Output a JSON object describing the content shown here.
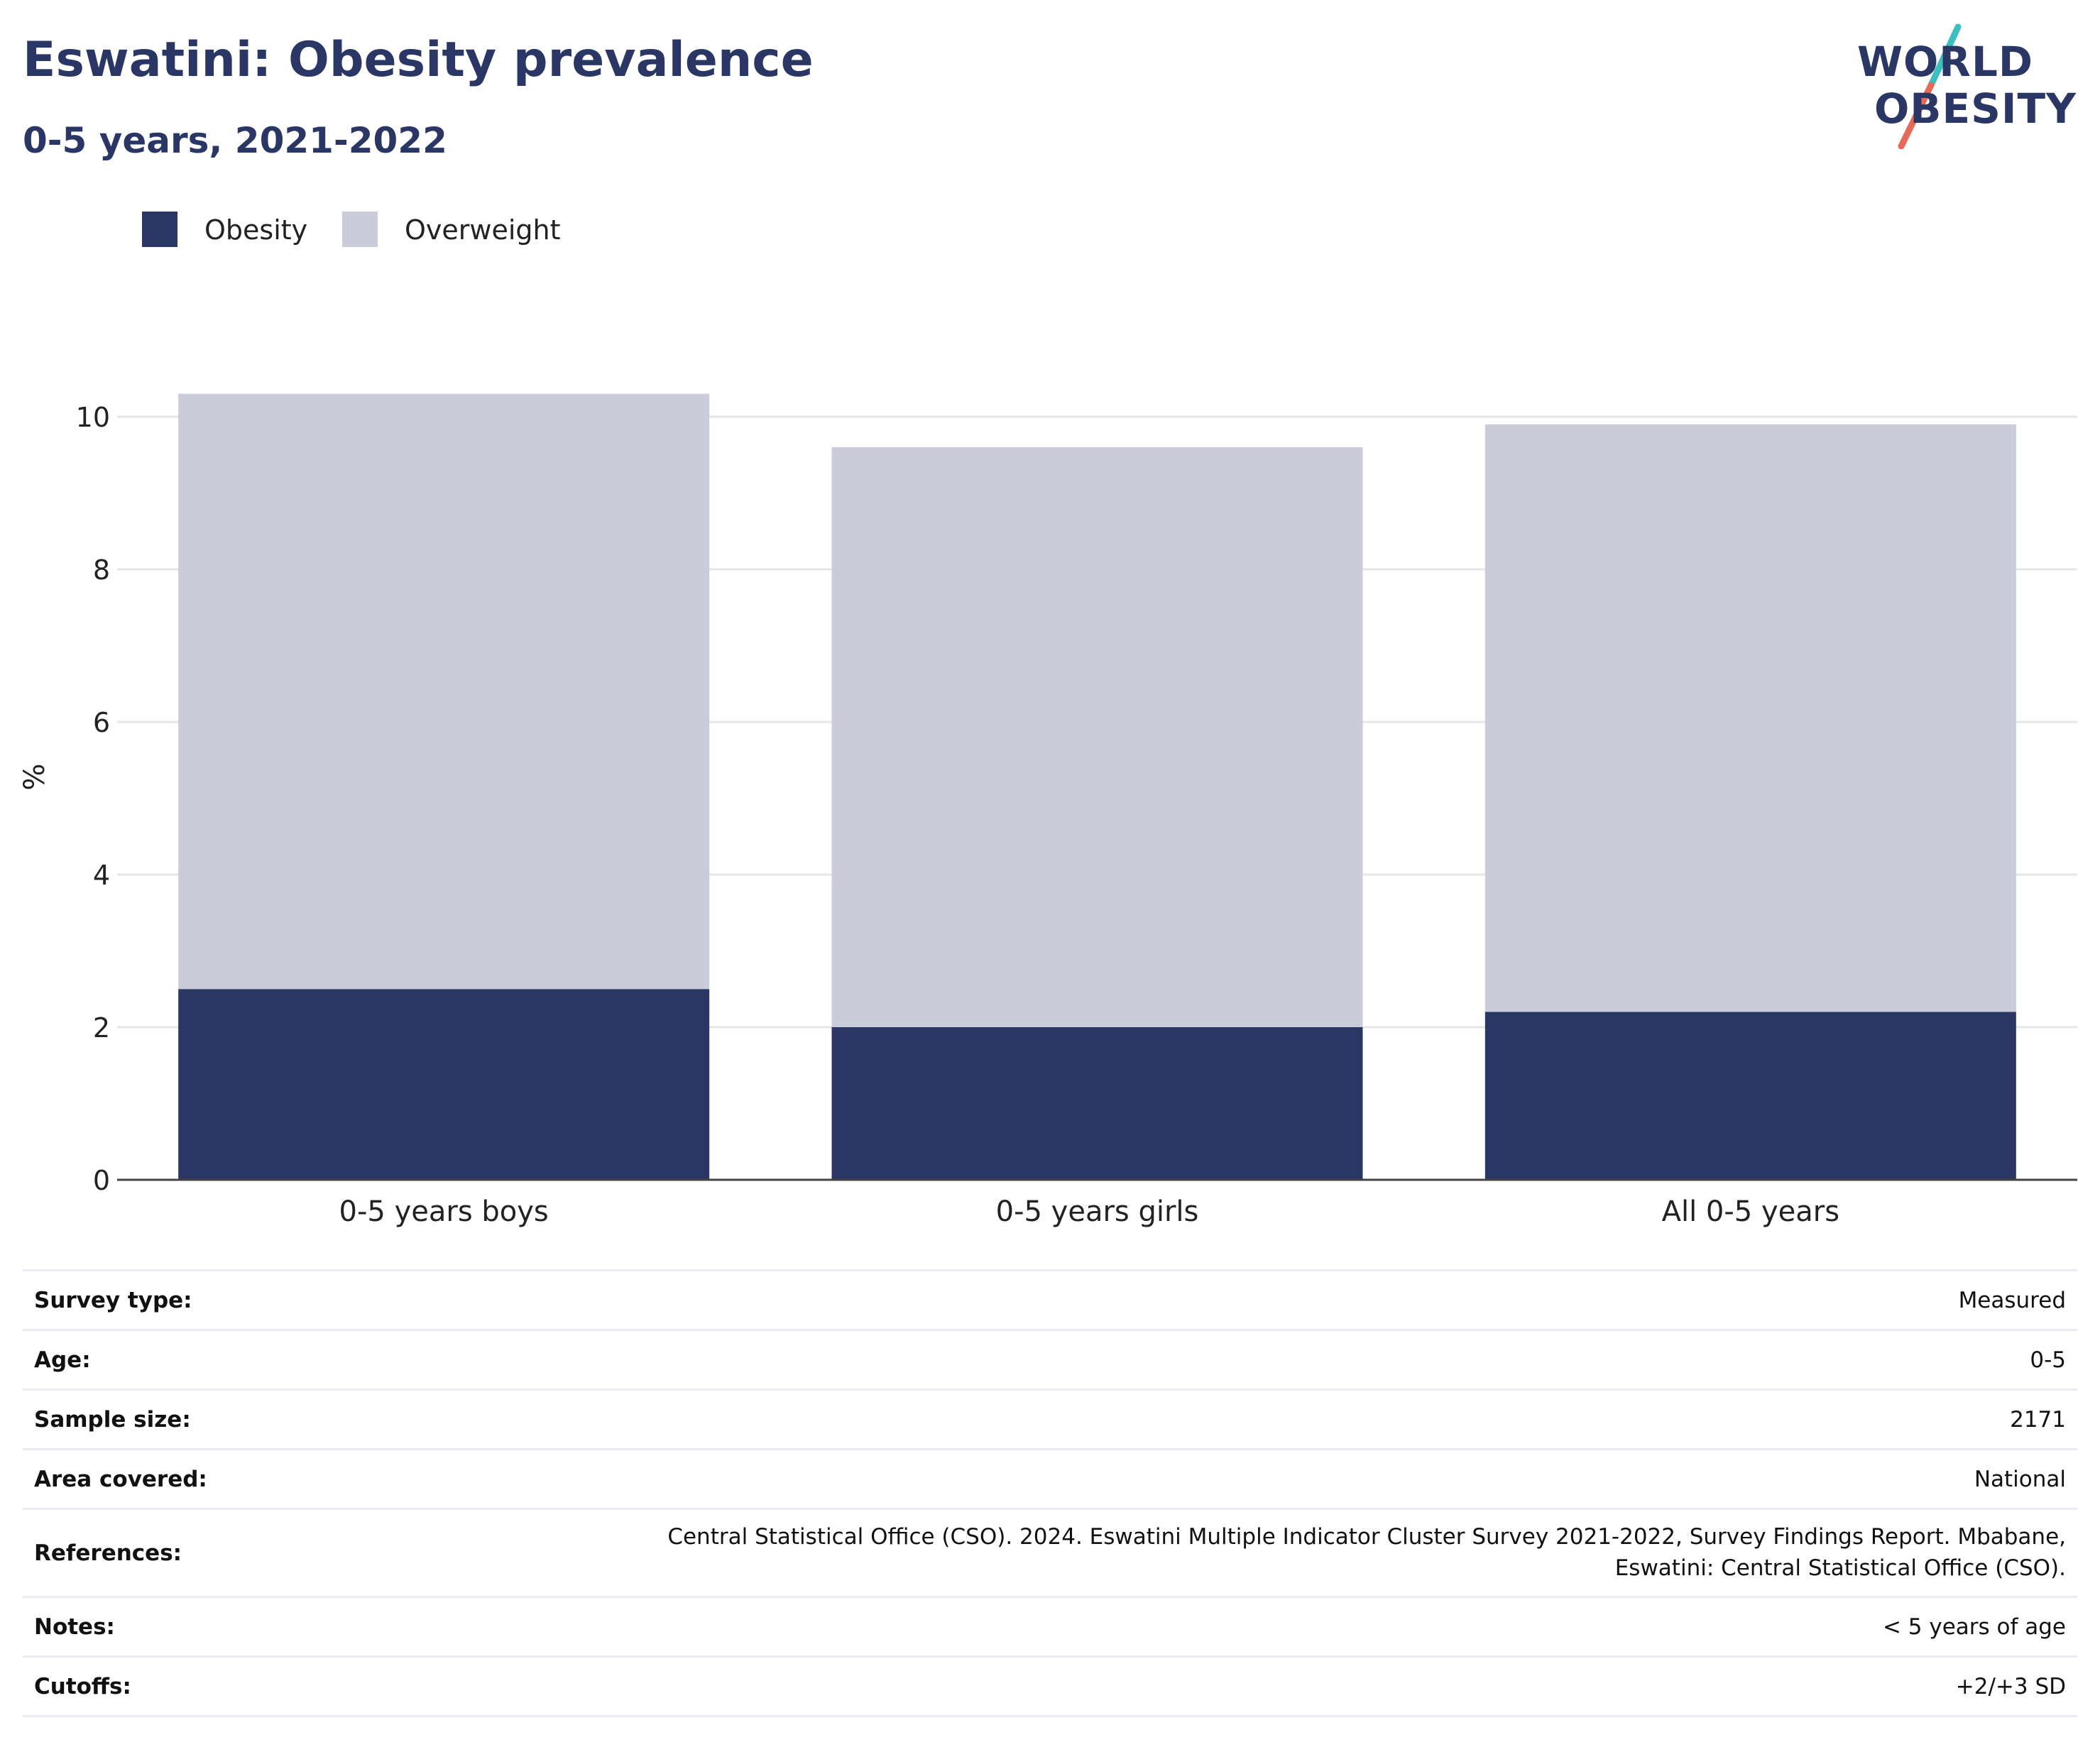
{
  "header": {
    "title": "Eswatini: Obesity prevalence",
    "subtitle": "0-5 years, 2021-2022"
  },
  "logo": {
    "line1": "WORLD",
    "line2": "OBESITY"
  },
  "colors": {
    "obesity": "#2a3764",
    "overweight": "#cacdd9",
    "accent_teal": "#3cbfbf",
    "accent_red": "#e8685a"
  },
  "chart_data": {
    "type": "bar",
    "stacked": true,
    "categories": [
      "0-5 years boys",
      "0-5 years girls",
      "All 0-5 years"
    ],
    "series": [
      {
        "name": "Obesity",
        "values": [
          2.5,
          2.0,
          2.2
        ]
      },
      {
        "name": "Overweight",
        "values": [
          7.8,
          7.6,
          7.7
        ]
      }
    ],
    "totals": [
      10.3,
      9.6,
      9.9
    ],
    "ylabel": "%",
    "ylim": [
      0,
      10.5
    ],
    "yticks": [
      0,
      2,
      4,
      6,
      8,
      10
    ],
    "grid": true,
    "legend_position": "top-left"
  },
  "table": {
    "rows": [
      {
        "label": "Survey type:",
        "value": "Measured"
      },
      {
        "label": "Age:",
        "value": "0-5"
      },
      {
        "label": "Sample size:",
        "value": "2171"
      },
      {
        "label": "Area covered:",
        "value": "National"
      },
      {
        "label": "References:",
        "value": "Central Statistical Office (CSO). 2024. Eswatini Multiple Indicator Cluster Survey 2021-2022, Survey Findings Report. Mbabane, Eswatini: Central Statistical Office (CSO)."
      },
      {
        "label": "Notes:",
        "value": "< 5 years of age"
      },
      {
        "label": "Cutoffs:",
        "value": "+2/+3 SD"
      }
    ]
  }
}
